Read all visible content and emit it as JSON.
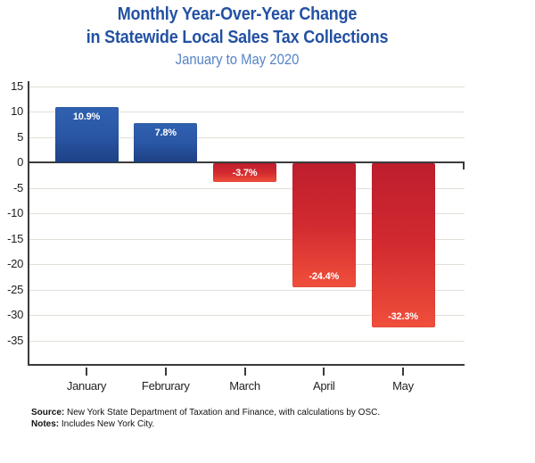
{
  "header": {
    "title_line1": "Monthly Year-Over-Year Change",
    "title_line2": "in Statewide Local Sales Tax Collections",
    "subtitle": "January to May 2020"
  },
  "chart_data": {
    "type": "bar",
    "title": "Monthly Year-Over-Year Change in Statewide Local Sales Tax Collections",
    "subtitle": "January to May 2020",
    "categories": [
      "January",
      "Februrary",
      "March",
      "April",
      "May"
    ],
    "values": [
      10.9,
      7.8,
      -3.7,
      -24.4,
      -32.3
    ],
    "bar_labels": [
      "10.9%",
      "7.8%",
      "-3.7%",
      "-24.4%",
      "-32.3%"
    ],
    "xlabel": "",
    "ylabel": "",
    "ylim": [
      -40,
      16
    ],
    "yticks": [
      15,
      10,
      5,
      0,
      -5,
      -10,
      -15,
      -20,
      -25,
      -30,
      -35
    ],
    "grid": true,
    "legend": "none",
    "colors": {
      "positive_bar": [
        "#2F61B0",
        "#2A57A6",
        "#1D4184"
      ],
      "negative_bar": [
        "#BE1E2D",
        "#D22A30",
        "#F04F3B"
      ],
      "title_text": "#2351A2",
      "subtitle_text": "#5583C6",
      "gridline": "#E3DED6",
      "axis": "#3B3B3B",
      "bar_label_text": "#FFFFFF",
      "tick_label_text": "#231F20"
    }
  },
  "footer": {
    "source_label": "Source:",
    "source_text": "New York State Department of Taxation and Finance, with calculations by OSC.",
    "notes_label": "Notes:",
    "notes_text": "Includes New York City."
  }
}
